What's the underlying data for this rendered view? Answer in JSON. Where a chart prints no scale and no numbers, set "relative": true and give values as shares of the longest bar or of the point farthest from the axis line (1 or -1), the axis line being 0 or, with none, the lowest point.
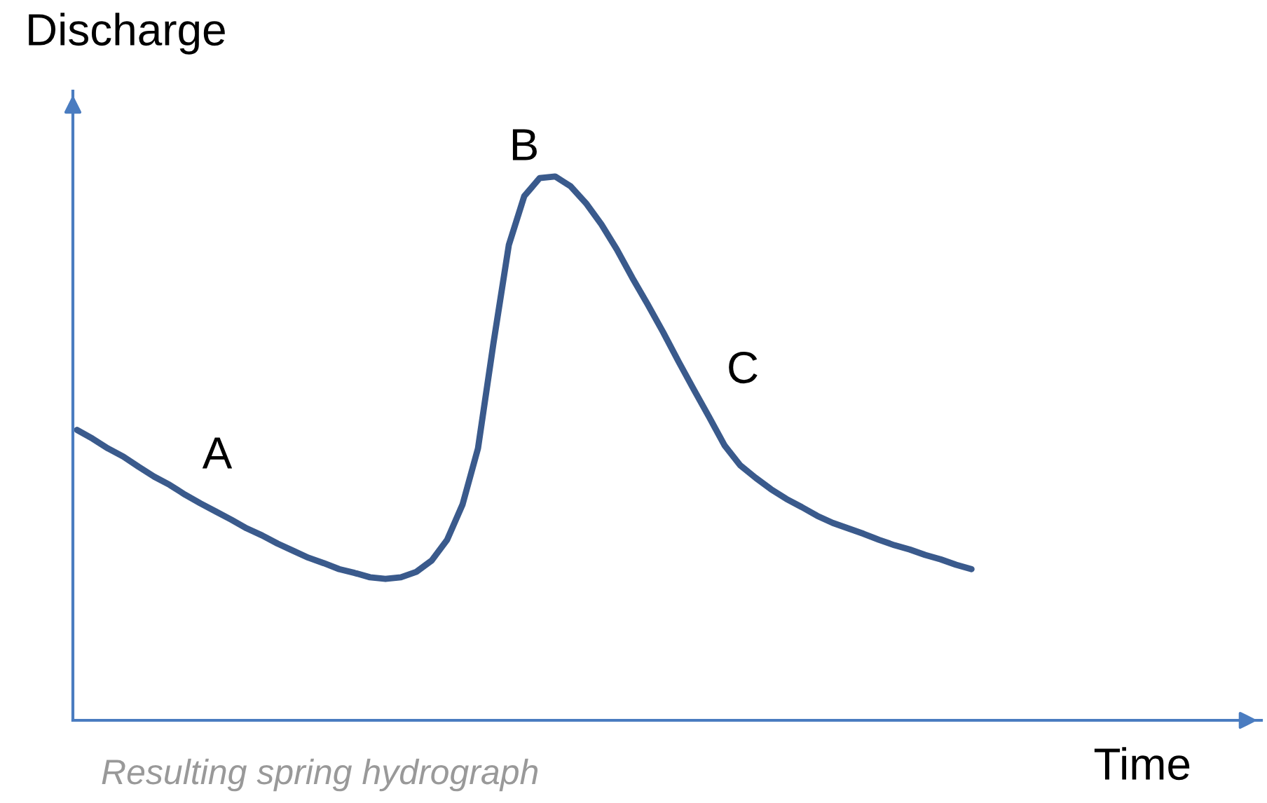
{
  "chart_data": {
    "type": "line",
    "relative": true,
    "xlabel": "Time",
    "ylabel": "Discharge",
    "categories": [
      null,
      null,
      null,
      null,
      null,
      null,
      null,
      null,
      null,
      null,
      null,
      null,
      null,
      null,
      null,
      null,
      null,
      null,
      null,
      null,
      null,
      null,
      null,
      null,
      null,
      null,
      null,
      null,
      null,
      null,
      null,
      null,
      null,
      null,
      null,
      null,
      null,
      null,
      null,
      null,
      null,
      null,
      null,
      null,
      null,
      null,
      null,
      null,
      null,
      null,
      null,
      null,
      null,
      null,
      null,
      null,
      null,
      null,
      null
    ],
    "series": [
      {
        "color": "#3a5a8c",
        "values": [
          0.534,
          0.518,
          0.5,
          0.485,
          0.466,
          0.448,
          0.433,
          0.415,
          0.399,
          0.384,
          0.369,
          0.353,
          0.34,
          0.325,
          0.312,
          0.299,
          0.289,
          0.278,
          0.271,
          0.263,
          0.26,
          0.263,
          0.273,
          0.294,
          0.332,
          0.397,
          0.5,
          0.693,
          0.874,
          0.964,
          0.997,
          1,
          0.982,
          0.951,
          0.912,
          0.866,
          0.814,
          0.765,
          0.714,
          0.66,
          0.608,
          0.557,
          0.505,
          0.469,
          0.446,
          0.425,
          0.407,
          0.392,
          0.376,
          0.363,
          0.353,
          0.343,
          0.332,
          0.322,
          0.314,
          0.304,
          0.296,
          0.286,
          0.278
        ]
      }
    ],
    "annotations": [
      "A",
      "B",
      "C",
      "Resulting spring hydrograph"
    ],
    "legend": false,
    "marker": "none",
    "line_style": "solid"
  }
}
